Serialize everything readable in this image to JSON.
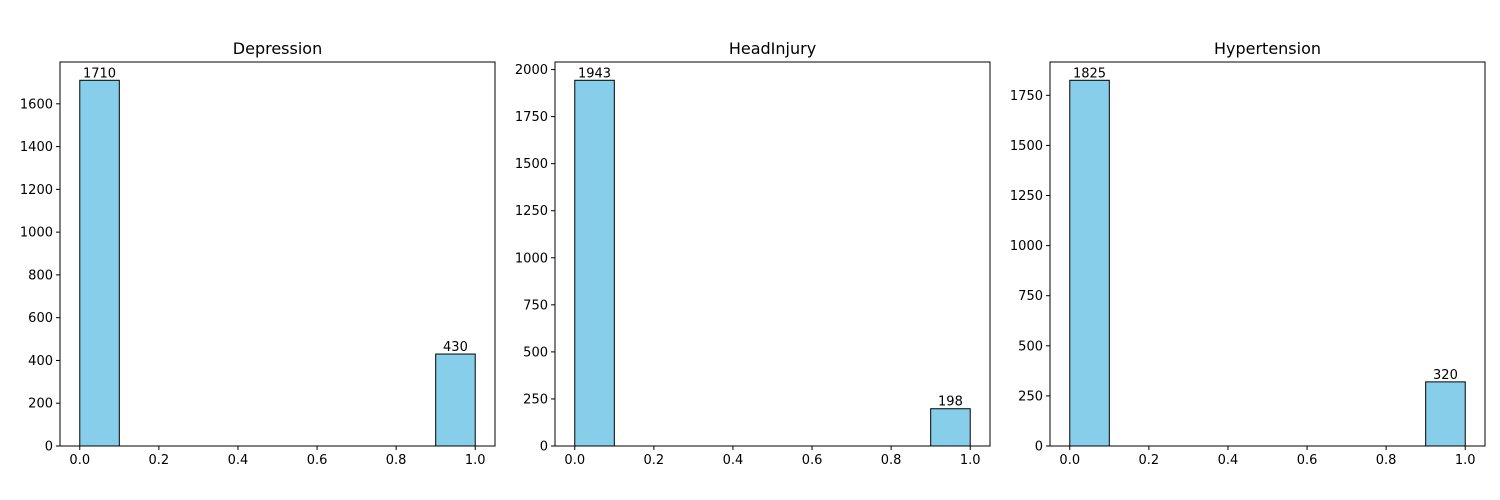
{
  "figure": {
    "background": "#ffffff"
  },
  "style": {
    "bar_fill": "#87ceeb",
    "bar_stroke": "#000000"
  },
  "chart_data": [
    {
      "type": "bar",
      "title": "Depression",
      "xlabel": "",
      "ylabel": "",
      "bins": [
        {
          "x0": 0.0,
          "x1": 0.1,
          "value": 1710
        },
        {
          "x0": 0.9,
          "x1": 1.0,
          "value": 430
        }
      ],
      "xlim": [
        -0.05,
        1.05
      ],
      "ylim": [
        0,
        1795.5
      ],
      "xticks": [
        0.0,
        0.2,
        0.4,
        0.6,
        0.8,
        1.0
      ],
      "xtick_labels": [
        "0.0",
        "0.2",
        "0.4",
        "0.6",
        "0.8",
        "1.0"
      ],
      "yticks": [
        0,
        200,
        400,
        600,
        800,
        1000,
        1200,
        1400,
        1600
      ],
      "ytick_labels": [
        "0",
        "200",
        "400",
        "600",
        "800",
        "1000",
        "1200",
        "1400",
        "1600"
      ],
      "data_labels": [
        "1710",
        "430"
      ],
      "grid": false,
      "legend": null
    },
    {
      "type": "bar",
      "title": "HeadInjury",
      "xlabel": "",
      "ylabel": "",
      "bins": [
        {
          "x0": 0.0,
          "x1": 0.1,
          "value": 1943
        },
        {
          "x0": 0.9,
          "x1": 1.0,
          "value": 198
        }
      ],
      "xlim": [
        -0.05,
        1.05
      ],
      "ylim": [
        0,
        2040.15
      ],
      "xticks": [
        0.0,
        0.2,
        0.4,
        0.6,
        0.8,
        1.0
      ],
      "xtick_labels": [
        "0.0",
        "0.2",
        "0.4",
        "0.6",
        "0.8",
        "1.0"
      ],
      "yticks": [
        0,
        250,
        500,
        750,
        1000,
        1250,
        1500,
        1750,
        2000
      ],
      "ytick_labels": [
        "0",
        "250",
        "500",
        "750",
        "1000",
        "1250",
        "1500",
        "1750",
        "2000"
      ],
      "data_labels": [
        "1943",
        "198"
      ],
      "grid": false,
      "legend": null
    },
    {
      "type": "bar",
      "title": "Hypertension",
      "xlabel": "",
      "ylabel": "",
      "bins": [
        {
          "x0": 0.0,
          "x1": 0.1,
          "value": 1825
        },
        {
          "x0": 0.9,
          "x1": 1.0,
          "value": 320
        }
      ],
      "xlim": [
        -0.05,
        1.05
      ],
      "ylim": [
        0,
        1916.25
      ],
      "xticks": [
        0.0,
        0.2,
        0.4,
        0.6,
        0.8,
        1.0
      ],
      "xtick_labels": [
        "0.0",
        "0.2",
        "0.4",
        "0.6",
        "0.8",
        "1.0"
      ],
      "yticks": [
        0,
        250,
        500,
        750,
        1000,
        1250,
        1500,
        1750
      ],
      "ytick_labels": [
        "0",
        "250",
        "500",
        "750",
        "1000",
        "1250",
        "1500",
        "1750"
      ],
      "data_labels": [
        "1825",
        "320"
      ],
      "grid": false,
      "legend": null
    }
  ]
}
